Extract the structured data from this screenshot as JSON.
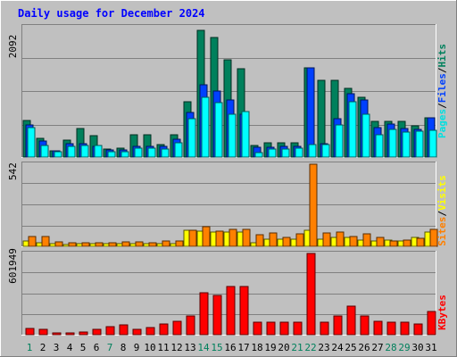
{
  "chart_data": [
    {
      "type": "bar",
      "title": "Daily usage for December 2024",
      "categories": [
        "1",
        "2",
        "3",
        "4",
        "5",
        "6",
        "7",
        "8",
        "9",
        "10",
        "11",
        "12",
        "13",
        "14",
        "15",
        "16",
        "17",
        "18",
        "19",
        "20",
        "21",
        "22",
        "23",
        "24",
        "25",
        "26",
        "27",
        "28",
        "29",
        "30",
        "31"
      ],
      "ymax_label": "2092",
      "ylim": [
        0,
        2092
      ],
      "grid": true,
      "legend_placement": "right",
      "series": [
        {
          "name": "Hits",
          "color": "#00805c",
          "values": [
            585,
            294,
            107,
            271,
            463,
            345,
            124,
            143,
            355,
            355,
            194,
            355,
            885,
            2038,
            1914,
            1567,
            1423,
            181,
            229,
            229,
            229,
            1435,
            1226,
            1236,
            1110,
            965,
            567,
            576,
            567,
            508,
            635
          ]
        },
        {
          "name": "Files",
          "color": "#0040ff",
          "values": [
            518,
            264,
            107,
            222,
            222,
            172,
            114,
            114,
            172,
            172,
            172,
            286,
            710,
            1161,
            1054,
            912,
            690,
            161,
            161,
            172,
            172,
            1435,
            222,
            623,
            1017,
            913,
            475,
            526,
            465,
            451,
            624
          ]
        },
        {
          "name": "Pages",
          "color": "#00ffff",
          "values": [
            475,
            181,
            79,
            172,
            181,
            181,
            79,
            79,
            137,
            137,
            127,
            229,
            610,
            958,
            868,
            690,
            725,
            71,
            129,
            129,
            137,
            205,
            205,
            521,
            891,
            690,
            357,
            444,
            403,
            409,
            431
          ]
        }
      ]
    },
    {
      "type": "bar",
      "categories": [
        "1",
        "2",
        "3",
        "4",
        "5",
        "6",
        "7",
        "8",
        "9",
        "10",
        "11",
        "12",
        "13",
        "14",
        "15",
        "16",
        "17",
        "18",
        "19",
        "20",
        "21",
        "22",
        "23",
        "24",
        "25",
        "26",
        "27",
        "28",
        "29",
        "30",
        "31"
      ],
      "ymax_label": "542",
      "ylim": [
        0,
        542
      ],
      "grid": true,
      "legend_placement": "right",
      "series": [
        {
          "name": "Visits",
          "color": "#ffff00",
          "values": [
            36,
            22,
            19,
            14,
            15,
            15,
            15,
            15,
            15,
            15,
            15,
            15,
            104,
            101,
            96,
            96,
            96,
            22,
            50,
            50,
            50,
            104,
            50,
            60,
            60,
            42,
            36,
            43,
            36,
            57,
            96
          ]
        },
        {
          "name": "Sites",
          "color": "#ff8000",
          "values": [
            67,
            65,
            30,
            25,
            25,
            25,
            25,
            30,
            28,
            25,
            36,
            36,
            104,
            127,
            101,
            113,
            113,
            75,
            86,
            60,
            80,
            542,
            87,
            93,
            67,
            83,
            60,
            36,
            41,
            55,
            113
          ]
        }
      ]
    },
    {
      "type": "bar",
      "categories": [
        "1",
        "2",
        "3",
        "4",
        "5",
        "6",
        "7",
        "8",
        "9",
        "10",
        "11",
        "12",
        "13",
        "14",
        "15",
        "16",
        "17",
        "18",
        "19",
        "20",
        "21",
        "22",
        "23",
        "24",
        "25",
        "26",
        "27",
        "28",
        "29",
        "30",
        "31"
      ],
      "ymax_label": "601949",
      "ylim": [
        0,
        601949
      ],
      "grid": true,
      "legend_placement": "right",
      "series": [
        {
          "name": "KBytes",
          "color": "#ff0000",
          "values": [
            45000,
            40000,
            10000,
            10000,
            20000,
            40000,
            60000,
            70000,
            40000,
            50000,
            80000,
            100000,
            140000,
            310000,
            290000,
            360000,
            360000,
            90000,
            90000,
            90000,
            90000,
            601949,
            90000,
            140000,
            210000,
            140000,
            100000,
            90000,
            90000,
            80000,
            170000
          ]
        }
      ]
    }
  ],
  "header": {
    "title": "Daily usage for December 2024"
  },
  "legend": {
    "top": [
      {
        "text": "Pages",
        "color": "#00e0e0"
      },
      {
        "text": "/",
        "color": "#000000"
      },
      {
        "text": "Files",
        "color": "#0040ff"
      },
      {
        "text": "/",
        "color": "#000000"
      },
      {
        "text": "Hits",
        "color": "#00805c"
      }
    ],
    "middle": [
      {
        "text": "Sites",
        "color": "#ff8000"
      },
      {
        "text": "/",
        "color": "#000000"
      },
      {
        "text": "Visits",
        "color": "#ffff00"
      }
    ],
    "bottom": [
      {
        "text": "KBytes",
        "color": "#ff0000"
      }
    ]
  },
  "weekend_days": [
    1,
    7,
    14,
    15,
    21,
    22,
    28,
    29
  ],
  "colors": {
    "weekend_label": "#00805c",
    "weekday_label": "#000000",
    "title": "#0000ff"
  }
}
